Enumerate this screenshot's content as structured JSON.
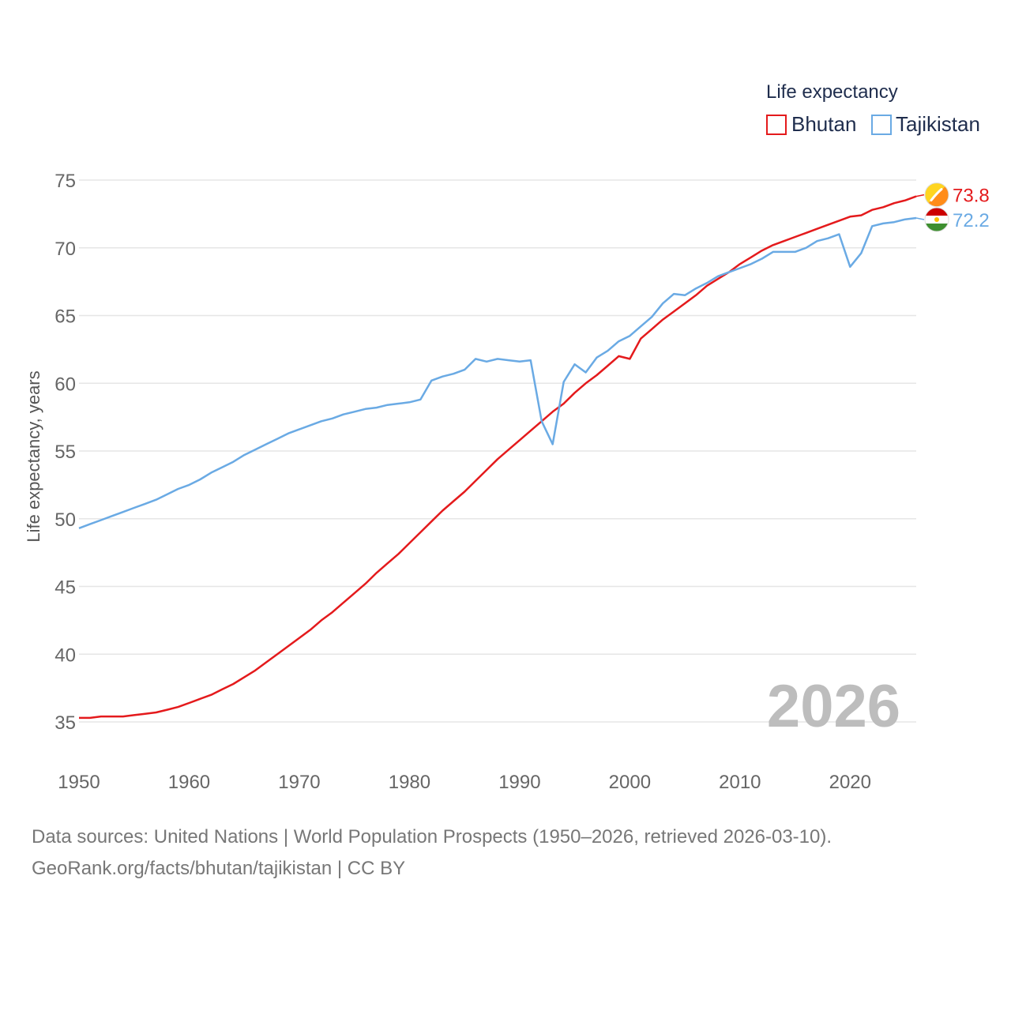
{
  "chart_data": {
    "type": "line",
    "legend_title": "Life expectancy",
    "ylabel": "Life expectancy, years",
    "xlabel": "",
    "xlim": [
      1950,
      2026
    ],
    "ylim": [
      32,
      76
    ],
    "yticks": [
      35,
      40,
      45,
      50,
      55,
      60,
      65,
      70,
      75
    ],
    "xticks": [
      1950,
      1960,
      1970,
      1980,
      1990,
      2000,
      2010,
      2020
    ],
    "current_year": "2026",
    "legend_position": "top-right",
    "grid": true,
    "x": [
      1950,
      1951,
      1952,
      1953,
      1954,
      1955,
      1956,
      1957,
      1958,
      1959,
      1960,
      1961,
      1962,
      1963,
      1964,
      1965,
      1966,
      1967,
      1968,
      1969,
      1970,
      1971,
      1972,
      1973,
      1974,
      1975,
      1976,
      1977,
      1978,
      1979,
      1980,
      1981,
      1982,
      1983,
      1984,
      1985,
      1986,
      1987,
      1988,
      1989,
      1990,
      1991,
      1992,
      1993,
      1994,
      1995,
      1996,
      1997,
      1998,
      1999,
      2000,
      2001,
      2002,
      2003,
      2004,
      2005,
      2006,
      2007,
      2008,
      2009,
      2010,
      2011,
      2012,
      2013,
      2014,
      2015,
      2016,
      2017,
      2018,
      2019,
      2020,
      2021,
      2022,
      2023,
      2024,
      2025,
      2026
    ],
    "series": [
      {
        "name": "Bhutan",
        "color": "#e41a1c",
        "end_label": "73.8",
        "flag": "bhutan",
        "values": [
          35.3,
          35.3,
          35.4,
          35.4,
          35.4,
          35.5,
          35.6,
          35.7,
          35.9,
          36.1,
          36.4,
          36.7,
          37.0,
          37.4,
          37.8,
          38.3,
          38.8,
          39.4,
          40.0,
          40.6,
          41.2,
          41.8,
          42.5,
          43.1,
          43.8,
          44.5,
          45.2,
          46.0,
          46.7,
          47.4,
          48.2,
          49.0,
          49.8,
          50.6,
          51.3,
          52.0,
          52.8,
          53.6,
          54.4,
          55.1,
          55.8,
          56.5,
          57.2,
          57.9,
          58.5,
          59.3,
          60.0,
          60.6,
          61.3,
          62.0,
          61.8,
          63.3,
          64.0,
          64.7,
          65.3,
          65.9,
          66.5,
          67.2,
          67.7,
          68.2,
          68.8,
          69.3,
          69.8,
          70.2,
          70.5,
          70.8,
          71.1,
          71.4,
          71.7,
          72.0,
          72.3,
          72.4,
          72.8,
          73.0,
          73.3,
          73.5,
          73.8
        ]
      },
      {
        "name": "Tajikistan",
        "color": "#6aaae4",
        "end_label": "72.2",
        "flag": "tajikistan",
        "values": [
          49.3,
          49.6,
          49.9,
          50.2,
          50.5,
          50.8,
          51.1,
          51.4,
          51.8,
          52.2,
          52.5,
          52.9,
          53.4,
          53.8,
          54.2,
          54.7,
          55.1,
          55.5,
          55.9,
          56.3,
          56.6,
          56.9,
          57.2,
          57.4,
          57.7,
          57.9,
          58.1,
          58.2,
          58.4,
          58.5,
          58.6,
          58.8,
          60.2,
          60.5,
          60.7,
          61.0,
          61.8,
          61.6,
          61.8,
          61.7,
          61.6,
          61.7,
          57.2,
          55.5,
          60.1,
          61.4,
          60.8,
          61.9,
          62.4,
          63.1,
          63.5,
          64.2,
          64.9,
          65.9,
          66.6,
          66.5,
          67.0,
          67.4,
          67.9,
          68.2,
          68.5,
          68.8,
          69.2,
          69.7,
          69.7,
          69.7,
          70.0,
          70.5,
          70.7,
          71.0,
          68.6,
          69.6,
          71.6,
          71.8,
          71.9,
          72.1,
          72.2
        ]
      }
    ]
  },
  "footer": {
    "line1": "Data sources: United Nations | World Population Prospects (1950–2026, retrieved 2026-03-10).",
    "line2": "GeoRank.org/facts/bhutan/tajikistan | CC BY"
  }
}
